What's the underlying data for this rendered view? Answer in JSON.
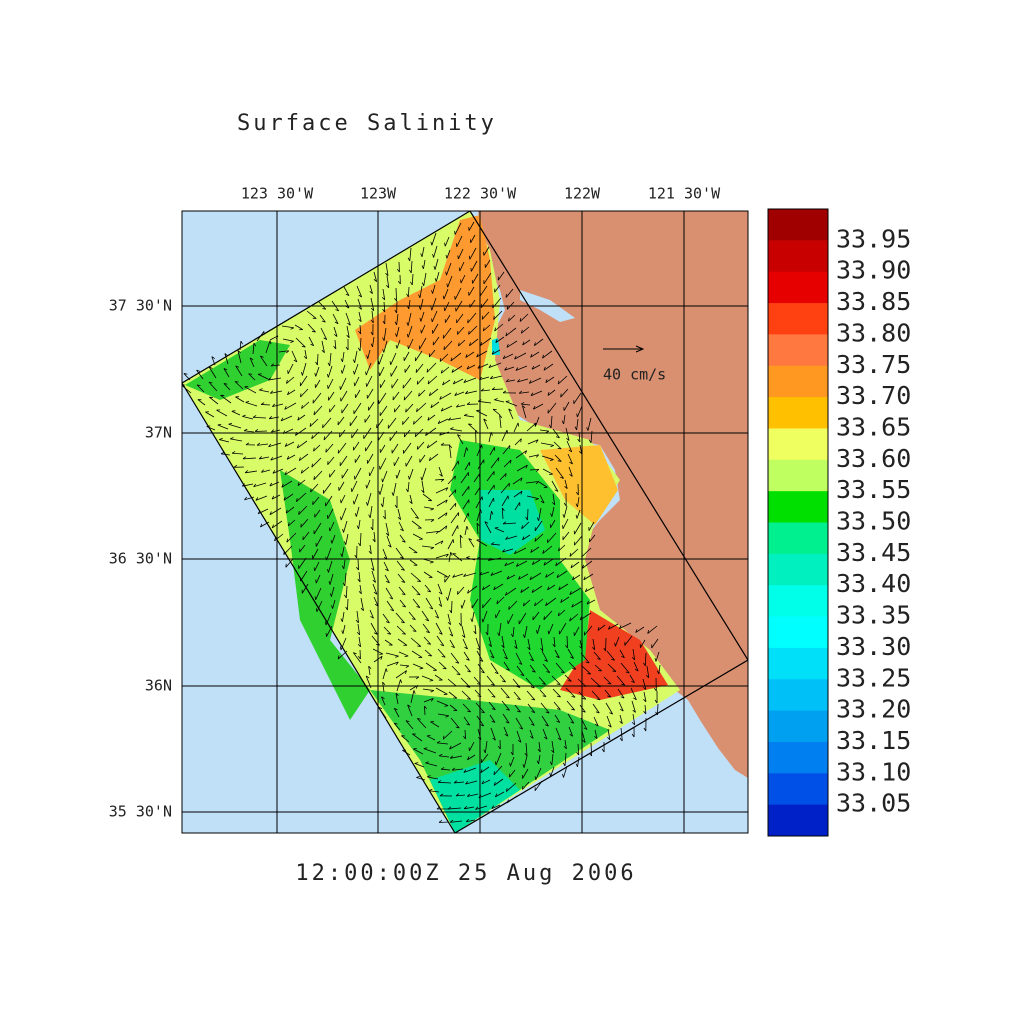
{
  "title": "Surface Salinity",
  "x_axis_labels": [
    "123 30'W",
    "123W",
    "122 30'W",
    "122W",
    "121 30'W"
  ],
  "y_axis_labels": [
    "37 30'N",
    "37N",
    "36 30'N",
    "36N",
    "35 30'N"
  ],
  "colorbar": {
    "labels": [
      "33.95",
      "33.90",
      "33.85",
      "33.80",
      "33.75",
      "33.70",
      "33.65",
      "33.60",
      "33.55",
      "33.50",
      "33.45",
      "33.40",
      "33.35",
      "33.30",
      "33.25",
      "33.20",
      "33.15",
      "33.10",
      "33.05"
    ],
    "colors": [
      "#a00000",
      "#c80000",
      "#e60000",
      "#ff4010",
      "#ff7840",
      "#ff9820",
      "#ffc000",
      "#f0ff60",
      "#c0ff60",
      "#00e000",
      "#00f090",
      "#00f0c0",
      "#00ffe8",
      "#00ffff",
      "#00e0f8",
      "#00c0f8",
      "#00a0f0",
      "#0080f0",
      "#0050e8",
      "#0020c8"
    ]
  },
  "vector_scale": "40 cm/s",
  "timestamp": "12:00:00Z  25 Aug 2006"
}
